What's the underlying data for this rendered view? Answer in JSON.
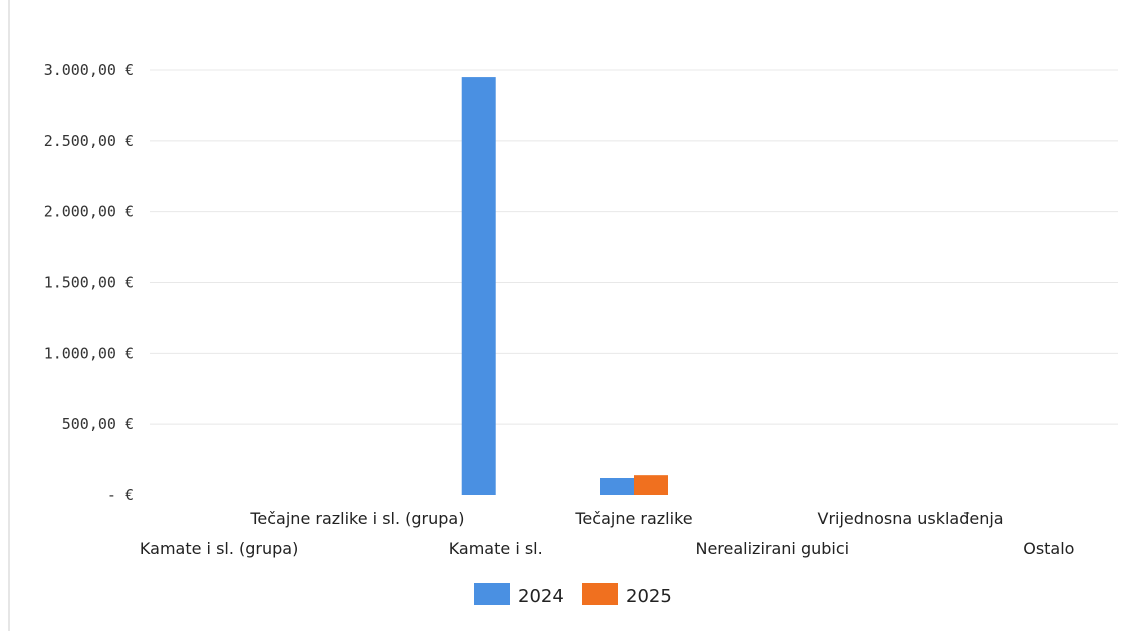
{
  "chart_data": {
    "type": "bar",
    "title": "",
    "categories": [
      "Kamate i sl. (grupa)",
      "Tečajne razlike i sl. (grupa)",
      "Kamate i sl.",
      "Tečajne razlike",
      "Nerealizirani gubici",
      "Vrijednosna usklađenja",
      "Ostalo"
    ],
    "series": [
      {
        "name": "2024",
        "color": "#4a90e2",
        "values": [
          0,
          0,
          2950,
          120,
          0,
          0,
          0
        ]
      },
      {
        "name": "2025",
        "color": "#f0701f",
        "values": [
          0,
          0,
          0,
          140,
          0,
          0,
          0
        ]
      }
    ],
    "ylim": [
      0,
      3000
    ],
    "yticks": [
      {
        "value": 0,
        "label": "-  €"
      },
      {
        "value": 500,
        "label": "500,00 €"
      },
      {
        "value": 1000,
        "label": "1.000,00 €"
      },
      {
        "value": 1500,
        "label": "1.500,00 €"
      },
      {
        "value": 2000,
        "label": "2.000,00 €"
      },
      {
        "value": 2500,
        "label": "2.500,00 €"
      },
      {
        "value": 3000,
        "label": "3.000,00 €"
      }
    ],
    "xlabel": "",
    "ylabel": "",
    "grid": true,
    "legend_position": "bottom"
  }
}
